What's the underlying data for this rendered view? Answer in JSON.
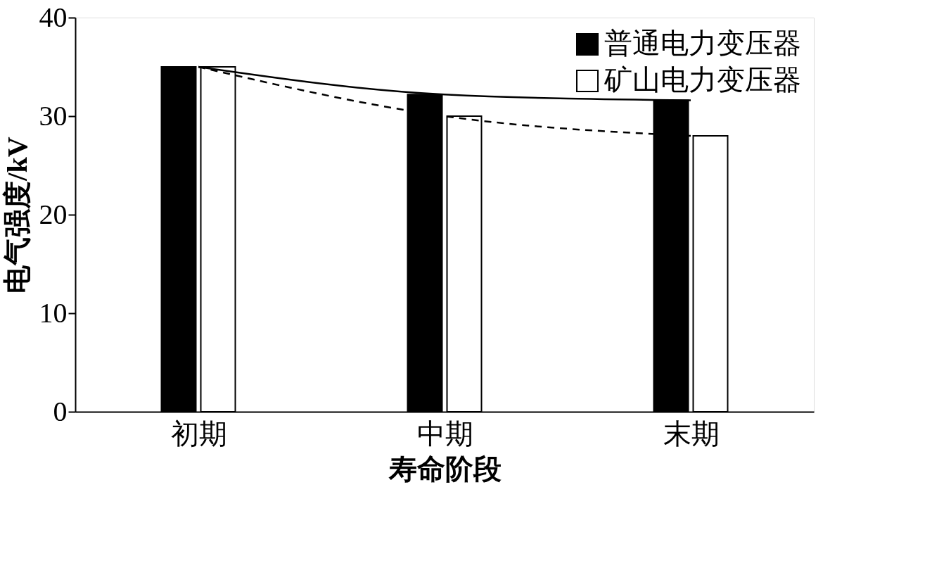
{
  "chart_data": {
    "type": "bar",
    "xlabel": "寿命阶段",
    "ylabel": "电气强度/kV",
    "categories": [
      "初期",
      "中期",
      "末期"
    ],
    "series": [
      {
        "name": "普通电力变压器",
        "color": "#000000",
        "values": [
          35,
          32.2,
          31.6
        ]
      },
      {
        "name": "矿山电力变压器",
        "color": "#ffffff",
        "values": [
          35,
          30,
          28
        ]
      },
      {
        "type": "line",
        "color": "#000000",
        "line_style": "solid",
        "values": [
          35,
          32.2,
          31.6
        ]
      },
      {
        "type": "line",
        "color": "#000000",
        "line_style": "dashed",
        "values": [
          35,
          30,
          28
        ]
      }
    ],
    "ylim": [
      0,
      40
    ],
    "yticks": [
      0,
      10,
      20,
      30,
      40
    ],
    "grid": false,
    "legend": "top right"
  }
}
